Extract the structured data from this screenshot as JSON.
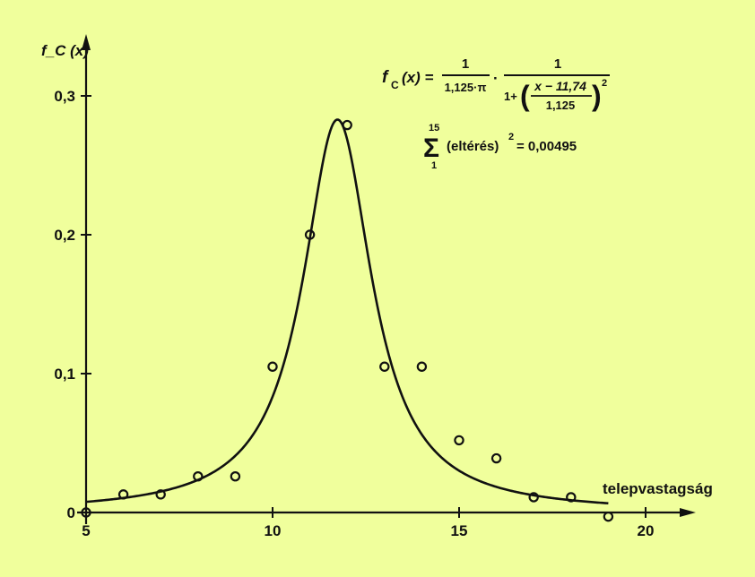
{
  "chart_data": {
    "type": "scatter",
    "title": "",
    "xlabel": "telepvastagság",
    "ylabel": "f_C (x)",
    "xlim": [
      5,
      20
    ],
    "ylim": [
      0,
      0.3
    ],
    "x_ticks": [
      5,
      10,
      15,
      20
    ],
    "x_tick_labels": [
      "5",
      "10",
      "15",
      "20"
    ],
    "y_ticks": [
      0,
      0.1,
      0.2,
      0.3
    ],
    "y_tick_labels": [
      "0",
      "0,1",
      "0,2",
      "0,3"
    ],
    "grid": false,
    "series": [
      {
        "kind": "points",
        "marker": "open-circle",
        "x": [
          5,
          6,
          7,
          8,
          9,
          10,
          11,
          12,
          13,
          14,
          15,
          16,
          17,
          18,
          19
        ],
        "y": [
          0.0,
          0.013,
          0.013,
          0.026,
          0.026,
          0.105,
          0.2,
          0.279,
          0.105,
          0.105,
          0.052,
          0.039,
          0.011,
          0.011,
          -0.003
        ]
      },
      {
        "kind": "curve",
        "function": "cauchy",
        "x0": 11.74,
        "gamma": 1.125,
        "domain": [
          5,
          19
        ]
      }
    ],
    "annotations": {
      "formula_lhs": "f",
      "formula_sub": "C",
      "formula_arg": "(x) =",
      "frac1_num": "1",
      "frac1_den": "1,125·π",
      "dot": "·",
      "frac2_num": "1",
      "frac2_den_prefix": "1+",
      "inner_num": "x − 11,74",
      "inner_den": "1,125",
      "exponent": "2",
      "sum_symbol": "Σ",
      "sum_upper": "15",
      "sum_lower": "1",
      "sum_body": "(eltérés)",
      "sum_exponent": "2",
      "sum_result": "= 0,00495"
    }
  },
  "colors": {
    "background": "#f0ff9c",
    "ink": "#111111"
  }
}
